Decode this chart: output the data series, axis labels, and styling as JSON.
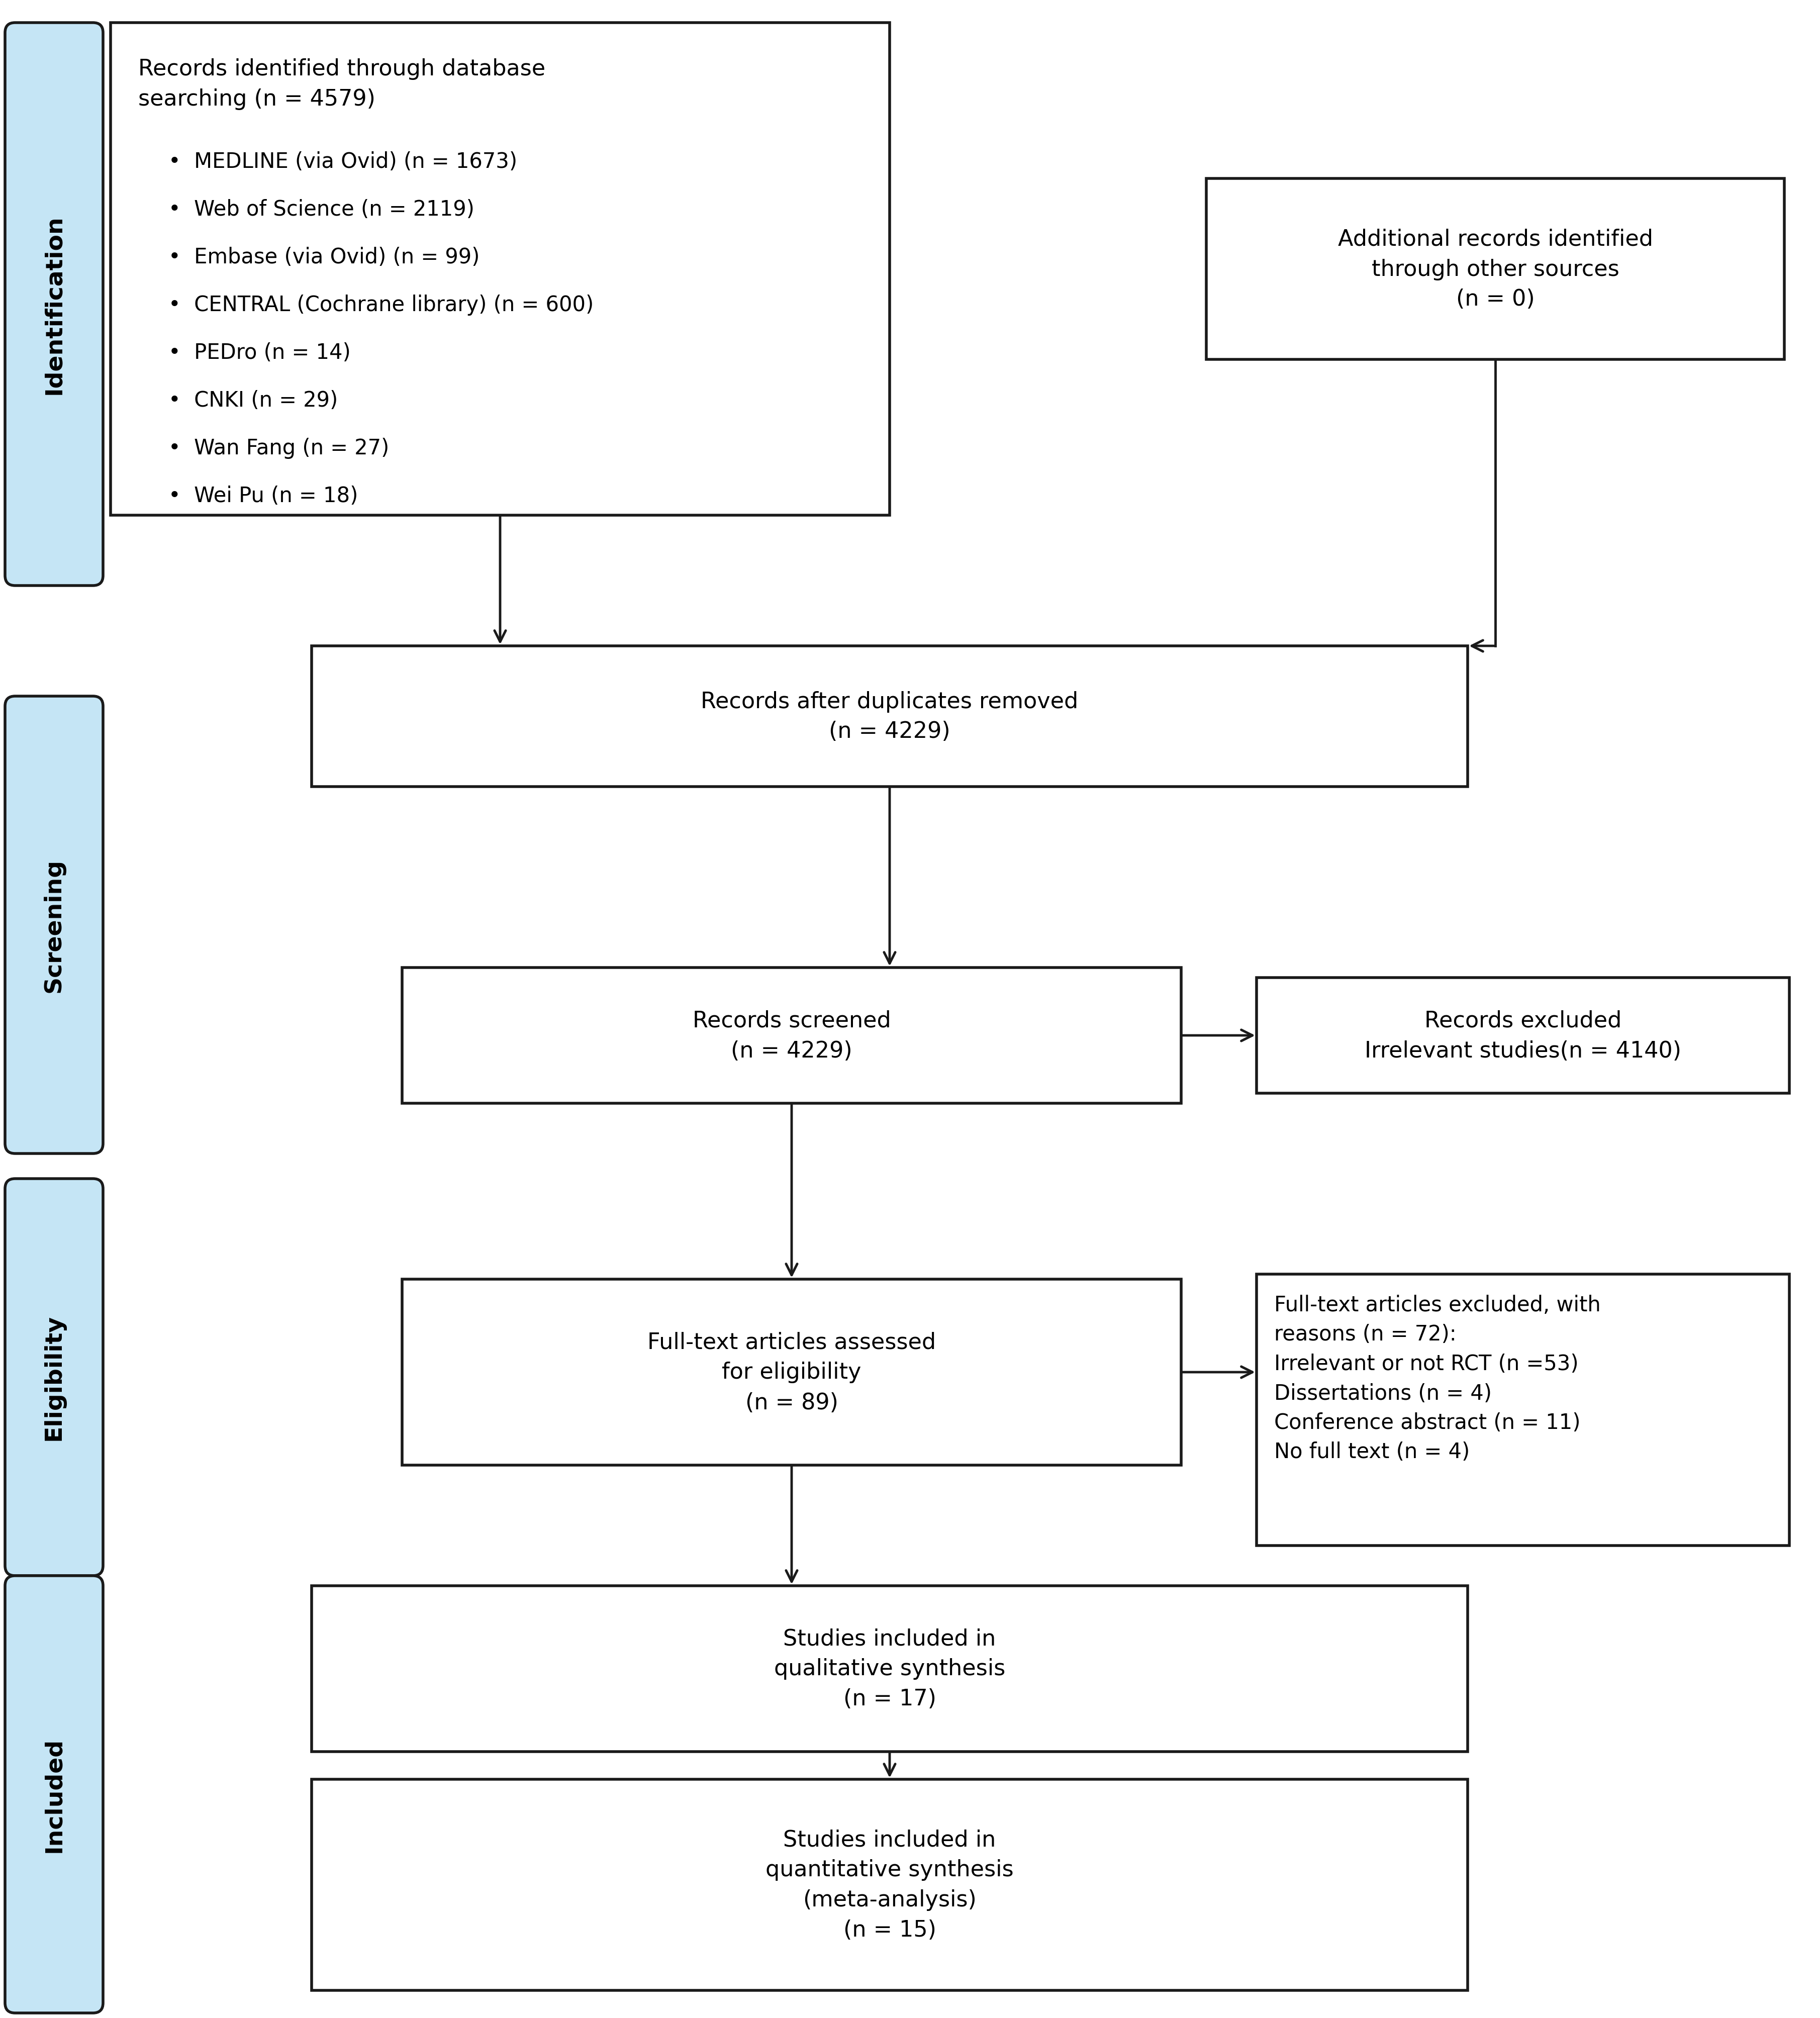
{
  "background_color": "#ffffff",
  "box_color": "#ffffff",
  "box_edge_color": "#1a1a1a",
  "side_label_bg": "#c5e5f5",
  "side_label_edge": "#1a1a1a",
  "arrow_color": "#1a1a1a",
  "text_color": "#000000",
  "box1_title": "Records identified through database\nsearching (n = 4579)",
  "box1_bullets": [
    "MEDLINE (via Ovid) (n = 1673)",
    "Web of Science (n = 2119)",
    "Embase (via Ovid) (n = 99)",
    "CENTRAL (Cochrane library) (n = 600)",
    "PEDro (n = 14)",
    "CNKI (n = 29)",
    "Wan Fang (n = 27)",
    "Wei Pu (n = 18)"
  ],
  "box2_text": "Additional records identified\nthrough other sources\n(n = 0)",
  "box3_text": "Records after duplicates removed\n(n = 4229)",
  "box4_text": "Records screened\n(n = 4229)",
  "box5_text": "Records excluded\nIrrelevant studies(n = 4140)",
  "box6_text": "Full-text articles assessed\nfor eligibility\n(n = 89)",
  "box7_text": "Full-text articles excluded, with\nreasons (n = 72):\nIrrelevant or not RCT (n =53)\nDissertations (n = 4)\nConference abstract (n = 11)\nNo full text (n = 4)",
  "box8_text": "Studies included in\nqualitative synthesis\n(n = 17)",
  "box9_text": "Studies included in\nquantitative synthesis\n(meta-analysis)\n(n = 15)"
}
